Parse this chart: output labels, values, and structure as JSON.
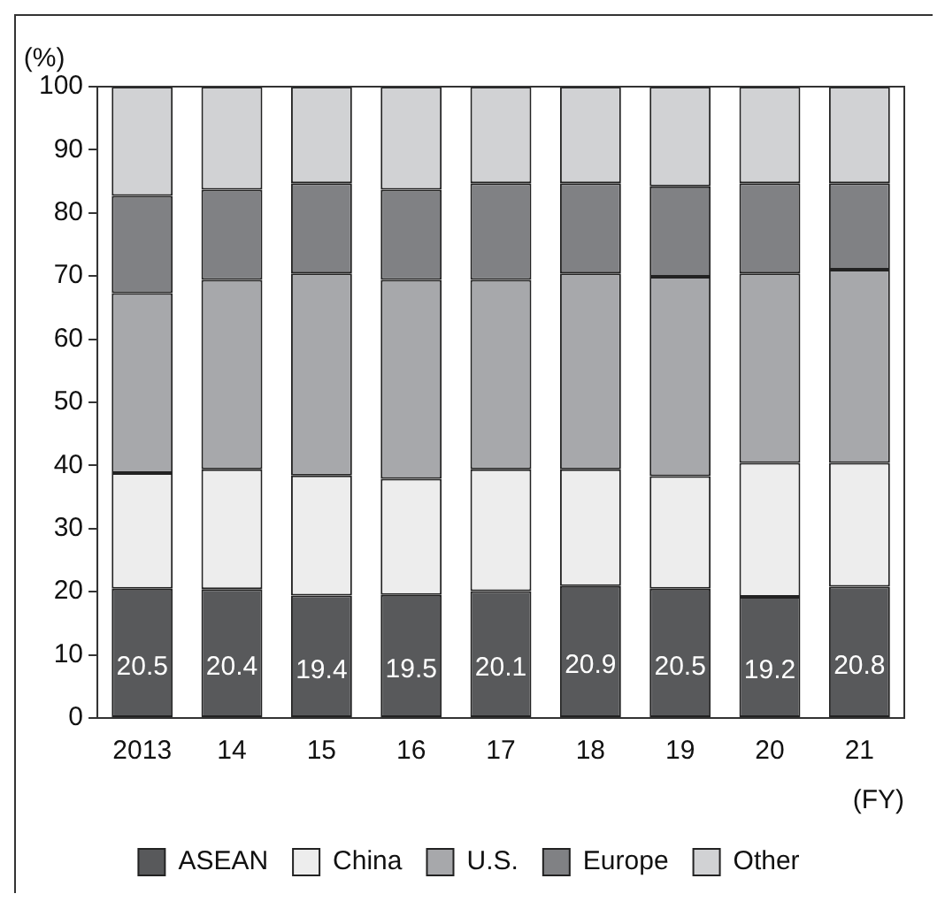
{
  "chart_data": {
    "type": "bar",
    "stacked": true,
    "ylabel": "(%)",
    "xlabel": "(FY)",
    "categories": [
      "2013",
      "14",
      "15",
      "16",
      "17",
      "18",
      "19",
      "20",
      "21"
    ],
    "series": [
      {
        "name": "ASEAN",
        "color": "#58595b",
        "values": [
          20.5,
          20.4,
          19.4,
          19.5,
          20.1,
          20.9,
          20.5,
          19.2,
          20.8
        ],
        "value_labels": [
          "20.5",
          "20.4",
          "19.4",
          "19.5",
          "20.1",
          "20.9",
          "20.5",
          "19.2",
          "20.8"
        ]
      },
      {
        "name": "China",
        "color": "#ededed",
        "values": [
          18.3,
          19.0,
          19.0,
          18.4,
          19.3,
          18.5,
          17.8,
          21.2,
          19.6
        ]
      },
      {
        "name": "U.S.",
        "color": "#a7a8ab",
        "values": [
          28.5,
          30.0,
          32.0,
          31.5,
          30.0,
          31.0,
          31.6,
          30.0,
          30.6
        ]
      },
      {
        "name": "Europe",
        "color": "#808184",
        "values": [
          15.4,
          14.3,
          14.3,
          14.3,
          15.3,
          14.3,
          14.3,
          14.3,
          13.7
        ]
      },
      {
        "name": "Other",
        "color": "#d1d2d4",
        "values": [
          17.3,
          16.3,
          15.3,
          16.3,
          15.3,
          15.3,
          15.8,
          15.3,
          15.3
        ]
      }
    ],
    "ylim": [
      0,
      100
    ],
    "yticks": [
      0,
      10,
      20,
      30,
      40,
      50,
      60,
      70,
      80,
      90,
      100
    ],
    "grid": false,
    "legend": "bottom"
  }
}
